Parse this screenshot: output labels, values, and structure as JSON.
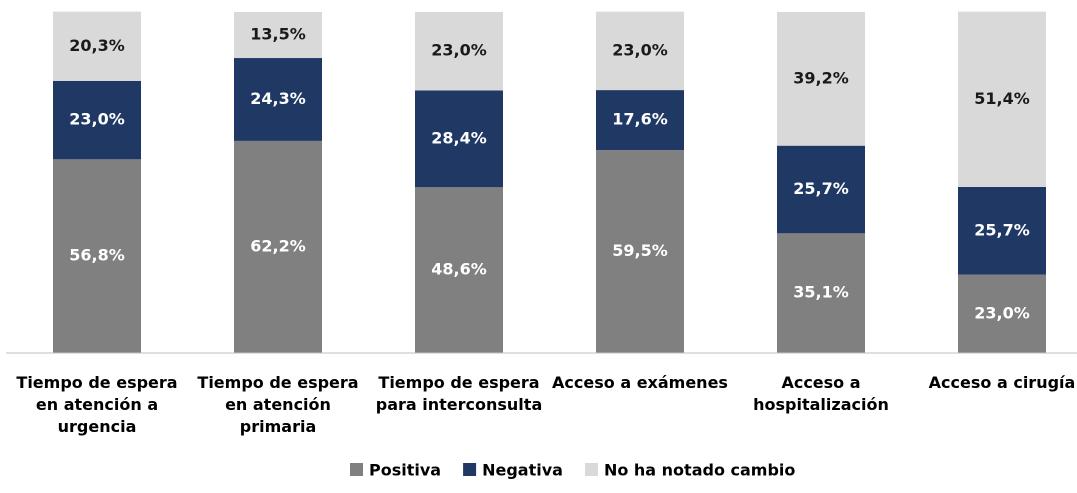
{
  "chart_data": {
    "type": "stacked_bar",
    "categories": [
      "Tiempo de espera en atención a urgencia",
      "Tiempo de espera en atención primaria",
      "Tiempo de espera para interconsulta",
      "Acceso a exámenes",
      "Acceso a hospitalización",
      "Acceso a cirugía"
    ],
    "series": [
      {
        "name": "Positiva",
        "color": "#808080",
        "values": [
          56.8,
          62.2,
          48.6,
          59.5,
          35.1,
          23.0
        ],
        "value_labels": [
          "56,8%",
          "62,2%",
          "48,6%",
          "59,5%",
          "35,1%",
          "23,0%"
        ]
      },
      {
        "name": "Negativa",
        "color": "#1f3864",
        "values": [
          23.0,
          24.3,
          28.4,
          17.6,
          25.7,
          25.7
        ],
        "value_labels": [
          "23,0%",
          "24,3%",
          "28,4%",
          "17,6%",
          "25,7%",
          "25,7%"
        ]
      },
      {
        "name": "No ha notado cambio",
        "color": "#d9d9d9",
        "values": [
          20.3,
          13.5,
          23.0,
          23.0,
          39.2,
          51.4
        ],
        "value_labels": [
          "20,3%",
          "13,5%",
          "23,0%",
          "23,0%",
          "39,2%",
          "51,4%"
        ]
      }
    ],
    "ylim": [
      0,
      100
    ],
    "legend": "bottom"
  }
}
